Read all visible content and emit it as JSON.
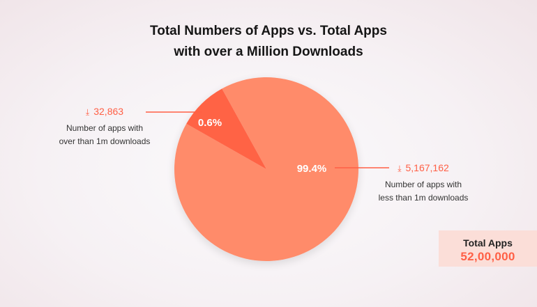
{
  "title": {
    "line1": "Total Numbers of Apps vs. Total Apps",
    "line2": "with over a Million Downloads"
  },
  "colors": {
    "large_slice": "#ff8b6a",
    "small_slice": "#ff6445",
    "accent": "#ff5f45",
    "total_box": "#fbded8"
  },
  "chart_data": {
    "type": "pie",
    "title": "Total Numbers of Apps vs. Total Apps with over a Million Downloads",
    "slices": [
      {
        "label": "Number of apps with over than 1m downloads",
        "count": 32863,
        "count_label": "32,863",
        "percent": 0.6,
        "percent_label": "0.6%",
        "icon": "download-icon"
      },
      {
        "label": "Number of apps with less than 1m downloads",
        "count": 5167162,
        "count_label": "5,167,162",
        "percent": 99.4,
        "percent_label": "99.4%",
        "icon": "download-icon"
      }
    ]
  },
  "callouts": {
    "over": {
      "count": "32,863",
      "line1": "Number of apps with",
      "line2": "over than 1m downloads"
    },
    "under": {
      "count": "5,167,162",
      "line1": "Number of apps with",
      "line2": "less than 1m downloads"
    }
  },
  "total": {
    "label": "Total Apps",
    "value": "52,00,000"
  }
}
